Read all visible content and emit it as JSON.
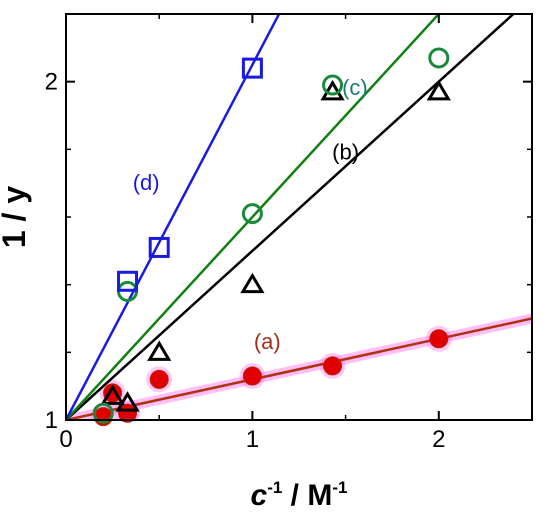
{
  "chart_data": {
    "type": "scatter",
    "xlabel": {
      "base": "c",
      "base_sup": "-1",
      "sep": " / ",
      "unit": "M",
      "unit_sup": "-1"
    },
    "ylabel": "1 / y",
    "xlim": [
      0,
      2.5
    ],
    "ylim": [
      1,
      2.2
    ],
    "xticks": [
      0,
      1,
      2
    ],
    "xtick_labels": [
      "0",
      "1",
      "2"
    ],
    "yticks": [
      1,
      2
    ],
    "ytick_labels": [
      "1",
      "2"
    ],
    "grid": false,
    "legend": "none",
    "series": [
      {
        "name": "(a)",
        "marker": "filled-circle",
        "color": "#e00000",
        "line_color": "#b03010",
        "highlight": "#ff88ee",
        "points": [
          [
            0.2,
            1.01
          ],
          [
            0.25,
            1.08
          ],
          [
            0.33,
            1.02
          ],
          [
            0.5,
            1.12
          ],
          [
            1.0,
            1.13
          ],
          [
            1.43,
            1.16
          ],
          [
            2.0,
            1.24
          ]
        ],
        "fit": {
          "intercept": 1.0,
          "slope": 0.12
        },
        "label_at": [
          1.08,
          1.21
        ]
      },
      {
        "name": "(b)",
        "marker": "open-triangle",
        "color": "#000000",
        "line_color": "#000000",
        "points": [
          [
            0.25,
            1.07
          ],
          [
            0.33,
            1.05
          ],
          [
            0.5,
            1.2
          ],
          [
            1.0,
            1.4
          ],
          [
            1.43,
            1.97
          ],
          [
            2.0,
            1.97
          ]
        ],
        "fit": {
          "intercept": 1.0,
          "slope": 0.5
        },
        "label_at": [
          1.5,
          1.77
        ]
      },
      {
        "name": "(c)",
        "marker": "open-circle",
        "color": "#1a8a3a",
        "line_color": "#108010",
        "points": [
          [
            0.2,
            1.02
          ],
          [
            0.33,
            1.38
          ],
          [
            1.0,
            1.61
          ],
          [
            1.43,
            1.99
          ],
          [
            2.0,
            2.07
          ]
        ],
        "fit": {
          "intercept": 1.0,
          "slope": 0.6
        },
        "label_at": [
          1.55,
          1.96
        ],
        "label_color": "#1a7a7a"
      },
      {
        "name": "(d)",
        "marker": "open-square",
        "color": "#1a1ae0",
        "line_color": "#1a1ae0",
        "points": [
          [
            0.33,
            1.41
          ],
          [
            0.5,
            1.51
          ],
          [
            1.0,
            2.04
          ]
        ],
        "fit": {
          "intercept": 1.0,
          "slope": 1.05
        },
        "label_at": [
          0.43,
          1.68
        ]
      }
    ]
  }
}
